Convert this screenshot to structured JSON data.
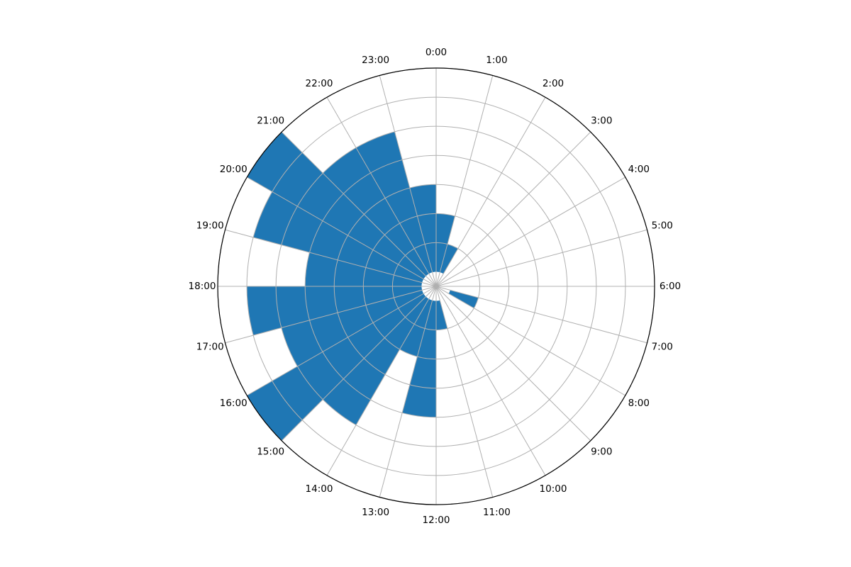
{
  "chart_data": {
    "type": "bar",
    "projection": "polar",
    "direction": "clockwise",
    "zero_location": "top",
    "grid": true,
    "categories": [
      "0:00",
      "1:00",
      "2:00",
      "3:00",
      "4:00",
      "5:00",
      "6:00",
      "7:00",
      "8:00",
      "9:00",
      "10:00",
      "11:00",
      "12:00",
      "13:00",
      "14:00",
      "15:00",
      "16:00",
      "17:00",
      "18:00",
      "19:00",
      "20:00",
      "21:00",
      "22:00",
      "23:00"
    ],
    "values": [
      2,
      1,
      0,
      0,
      0,
      0,
      0,
      1,
      0,
      0,
      0,
      1,
      4,
      2,
      5,
      7,
      5,
      6,
      4,
      6,
      7,
      5,
      5,
      3
    ],
    "radial_offset": 0.5,
    "rlim": [
      0,
      7.5
    ],
    "radial_grid": [
      1,
      2,
      3,
      4,
      5,
      6,
      7
    ],
    "colors": {
      "bar": "#1f77b4",
      "grid": "#b0b0b0",
      "spine": "#000000"
    }
  }
}
